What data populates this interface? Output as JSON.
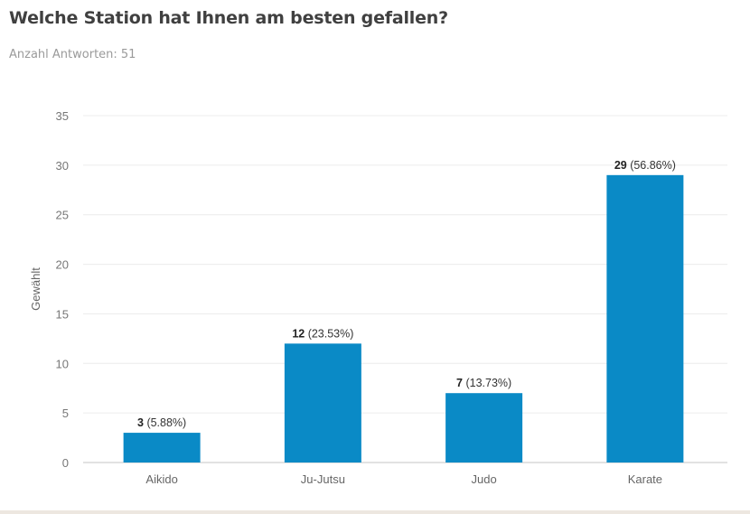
{
  "title": "Welche Station hat Ihnen am besten gefallen?",
  "subtitle": "Anzahl Antworten: 51",
  "chart_data": {
    "type": "bar",
    "title": "Welche Station hat Ihnen am besten gefallen?",
    "subtitle": "Anzahl Antworten: 51",
    "xlabel": "",
    "ylabel": "Gewählt",
    "categories": [
      "Aikido",
      "Ju-Jutsu",
      "Judo",
      "Karate"
    ],
    "values": [
      3,
      12,
      7,
      29
    ],
    "data_labels": [
      {
        "count": "3",
        "percent": "(5.88%)"
      },
      {
        "count": "12",
        "percent": "(23.53%)"
      },
      {
        "count": "7",
        "percent": "(13.73%)"
      },
      {
        "count": "29",
        "percent": "(56.86%)"
      }
    ],
    "ylim": [
      0,
      35
    ],
    "yticks": [
      0,
      5,
      10,
      15,
      20,
      25,
      30,
      35
    ],
    "grid": true,
    "legend": "none",
    "bar_color": "#0a8ac6"
  }
}
